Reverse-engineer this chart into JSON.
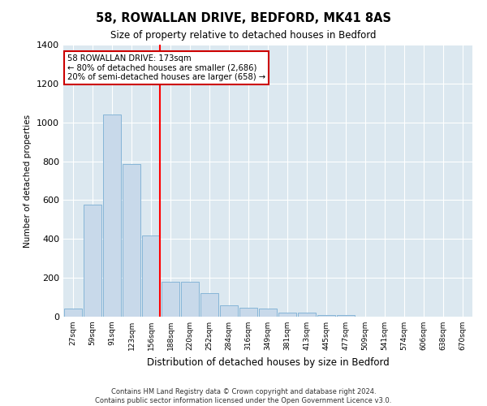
{
  "title": "58, ROWALLAN DRIVE, BEDFORD, MK41 8AS",
  "subtitle": "Size of property relative to detached houses in Bedford",
  "xlabel": "Distribution of detached houses by size in Bedford",
  "ylabel": "Number of detached properties",
  "categories": [
    "27sqm",
    "59sqm",
    "91sqm",
    "123sqm",
    "156sqm",
    "188sqm",
    "220sqm",
    "252sqm",
    "284sqm",
    "316sqm",
    "349sqm",
    "381sqm",
    "413sqm",
    "445sqm",
    "477sqm",
    "509sqm",
    "541sqm",
    "574sqm",
    "606sqm",
    "638sqm",
    "670sqm"
  ],
  "values": [
    40,
    575,
    1040,
    785,
    420,
    180,
    180,
    120,
    60,
    45,
    40,
    22,
    22,
    10,
    8,
    0,
    0,
    0,
    0,
    0,
    0
  ],
  "bar_color": "#c8d9ea",
  "bar_edge_color": "#7aaed4",
  "redline_x": 4.475,
  "redline_label": "58 ROWALLAN DRIVE: 173sqm",
  "annotation_line1": "← 80% of detached houses are smaller (2,686)",
  "annotation_line2": "20% of semi-detached houses are larger (658) →",
  "annotation_box_color": "#ffffff",
  "annotation_box_edge": "#cc0000",
  "ylim": [
    0,
    1400
  ],
  "yticks": [
    0,
    200,
    400,
    600,
    800,
    1000,
    1200,
    1400
  ],
  "plot_bg_color": "#dce8f0",
  "fig_bg_color": "#ffffff",
  "grid_color": "#ffffff",
  "footer1": "Contains HM Land Registry data © Crown copyright and database right 2024.",
  "footer2": "Contains public sector information licensed under the Open Government Licence v3.0."
}
